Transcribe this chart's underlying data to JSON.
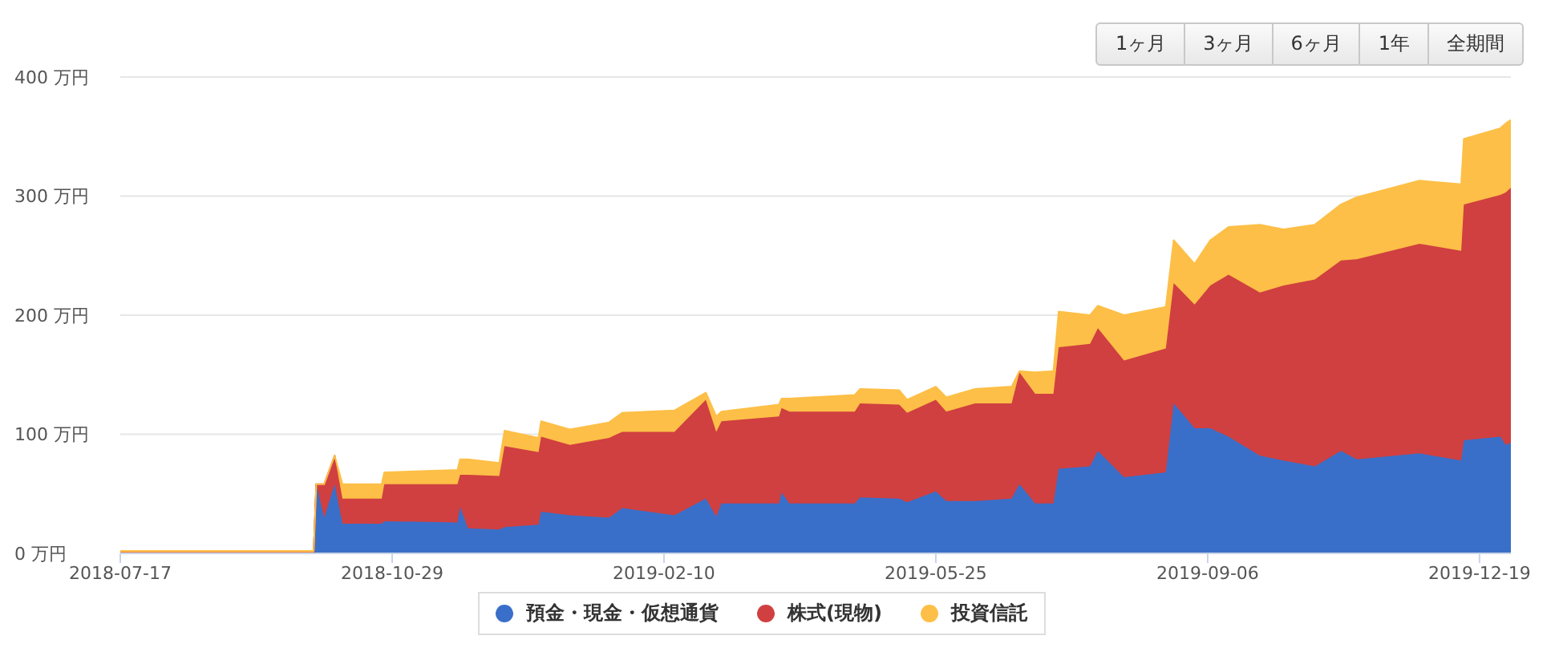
{
  "chart_data": {
    "type": "area",
    "stacked": true,
    "x": [
      "2018-07-17",
      "2018-09-29",
      "2018-09-30",
      "2018-10-03",
      "2018-10-07",
      "2018-10-10",
      "2018-10-25",
      "2018-10-26",
      "2018-11-23",
      "2018-11-24",
      "2018-11-27",
      "2018-12-09",
      "2018-12-11",
      "2018-12-24",
      "2018-12-25",
      "2019-01-05",
      "2019-01-20",
      "2019-01-25",
      "2019-02-14",
      "2019-02-26",
      "2019-03-02",
      "2019-03-04",
      "2019-03-26",
      "2019-03-27",
      "2019-03-30",
      "2019-04-24",
      "2019-04-26",
      "2019-05-11",
      "2019-05-14",
      "2019-05-25",
      "2019-05-29",
      "2019-06-09",
      "2019-06-23",
      "2019-06-26",
      "2019-07-02",
      "2019-07-09",
      "2019-07-11",
      "2019-07-23",
      "2019-07-26",
      "2019-08-05",
      "2019-08-21",
      "2019-08-24",
      "2019-09-01",
      "2019-09-07",
      "2019-09-14",
      "2019-09-26",
      "2019-10-05",
      "2019-10-17",
      "2019-10-27",
      "2019-11-02",
      "2019-11-26",
      "2019-12-12",
      "2019-12-13",
      "2019-12-27",
      "2019-12-29",
      "2019-12-31"
    ],
    "series": [
      {
        "name": "預金・現金・仮想通貨",
        "color": "#3a6fc9",
        "values": [
          1,
          1,
          58,
          30,
          58,
          25,
          25,
          27,
          26,
          39,
          21,
          20,
          22,
          24,
          35,
          32,
          30,
          38,
          32,
          46,
          31,
          42,
          42,
          51,
          42,
          42,
          47,
          46,
          43,
          52,
          44,
          44,
          46,
          58,
          42,
          42,
          71,
          73,
          86,
          64,
          68,
          126,
          105,
          105,
          98,
          82,
          78,
          73,
          86,
          79,
          84,
          78,
          95,
          98,
          91,
          93
        ]
      },
      {
        "name": "株式(現物)",
        "color": "#d04040",
        "values": [
          0,
          0,
          0,
          28,
          24,
          21,
          21,
          31,
          32,
          27,
          45,
          45,
          68,
          61,
          63,
          59,
          67,
          64,
          70,
          83,
          71,
          69,
          73,
          71,
          77,
          77,
          79,
          79,
          75,
          77,
          75,
          82,
          80,
          94,
          92,
          92,
          102,
          103,
          103,
          98,
          104,
          101,
          104,
          120,
          136,
          137,
          147,
          157,
          160,
          168,
          176,
          176,
          198,
          203,
          212,
          214
        ]
      },
      {
        "name": "投資信託",
        "color": "#fdbf47",
        "values": [
          1,
          1,
          0,
          0,
          0,
          12,
          12,
          10,
          12,
          13,
          13,
          11,
          13,
          12,
          13,
          13,
          13,
          16,
          18,
          6,
          13,
          8,
          10,
          8,
          11,
          14,
          12,
          12,
          11,
          11,
          12,
          12,
          14,
          1,
          18,
          19,
          30,
          24,
          19,
          38,
          35,
          36,
          34,
          38,
          40,
          57,
          47,
          46,
          47,
          52,
          53,
          56,
          55,
          56,
          58,
          57
        ]
      }
    ],
    "xlim": [
      "2018-07-17",
      "2019-12-31"
    ],
    "xticks": [
      "2018-07-17",
      "2018-10-29",
      "2019-02-10",
      "2019-05-25",
      "2019-09-06",
      "2019-12-19"
    ],
    "ylim": [
      0,
      400
    ],
    "yticks": [
      {
        "value": 0,
        "label": "0 万円"
      },
      {
        "value": 100,
        "label": "100 万円"
      },
      {
        "value": 200,
        "label": "200 万円"
      },
      {
        "value": 300,
        "label": "300 万円"
      },
      {
        "value": 400,
        "label": "400 万円"
      }
    ],
    "grid": "y",
    "legend": "bottom",
    "annotations": [
      "1ヶ月",
      "3ヶ月",
      "6ヶ月",
      "1年",
      "全期間"
    ]
  }
}
